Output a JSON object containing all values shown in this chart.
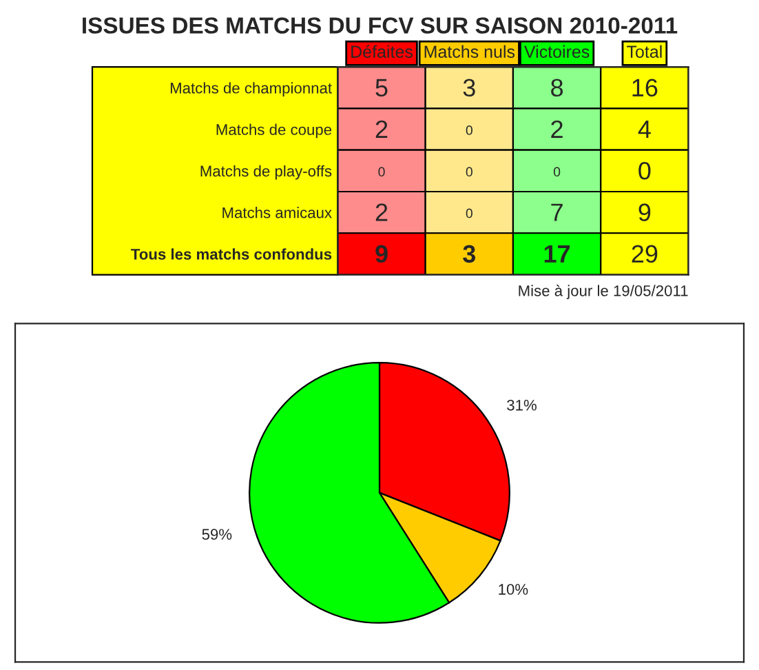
{
  "chart_data": [
    {
      "type": "heatmap",
      "title": "ISSUES DES MATCHS DU FCV SUR SAISON 2010-2011",
      "categories": [
        "Défaites",
        "Matchs nuls",
        "Victoires",
        "Total"
      ],
      "y_categories": [
        "Matchs de championnat",
        "Matchs de coupe",
        "Matchs de play-offs",
        "Matchs amicaux",
        "Tous les matchs confondus"
      ],
      "cells": [
        [
          5,
          3,
          8,
          16
        ],
        [
          2,
          0,
          2,
          4
        ],
        [
          0,
          0,
          0,
          0
        ],
        [
          2,
          0,
          7,
          9
        ],
        [
          9,
          3,
          17,
          29
        ]
      ],
      "colors": [
        "#ff0000",
        "#ffcc00",
        "#00ff00",
        "#ffff00"
      ],
      "data_labels": true,
      "annotations": [
        "Mise à jour le 19/05/2011"
      ]
    },
    {
      "type": "pie",
      "categories": [
        null,
        null,
        null
      ],
      "values": [
        31,
        10,
        59
      ],
      "colors": [
        "#ff0000",
        "#ffcc00",
        "#00ff00"
      ],
      "value_labels": [
        "31%",
        "10%",
        "59%"
      ]
    }
  ]
}
